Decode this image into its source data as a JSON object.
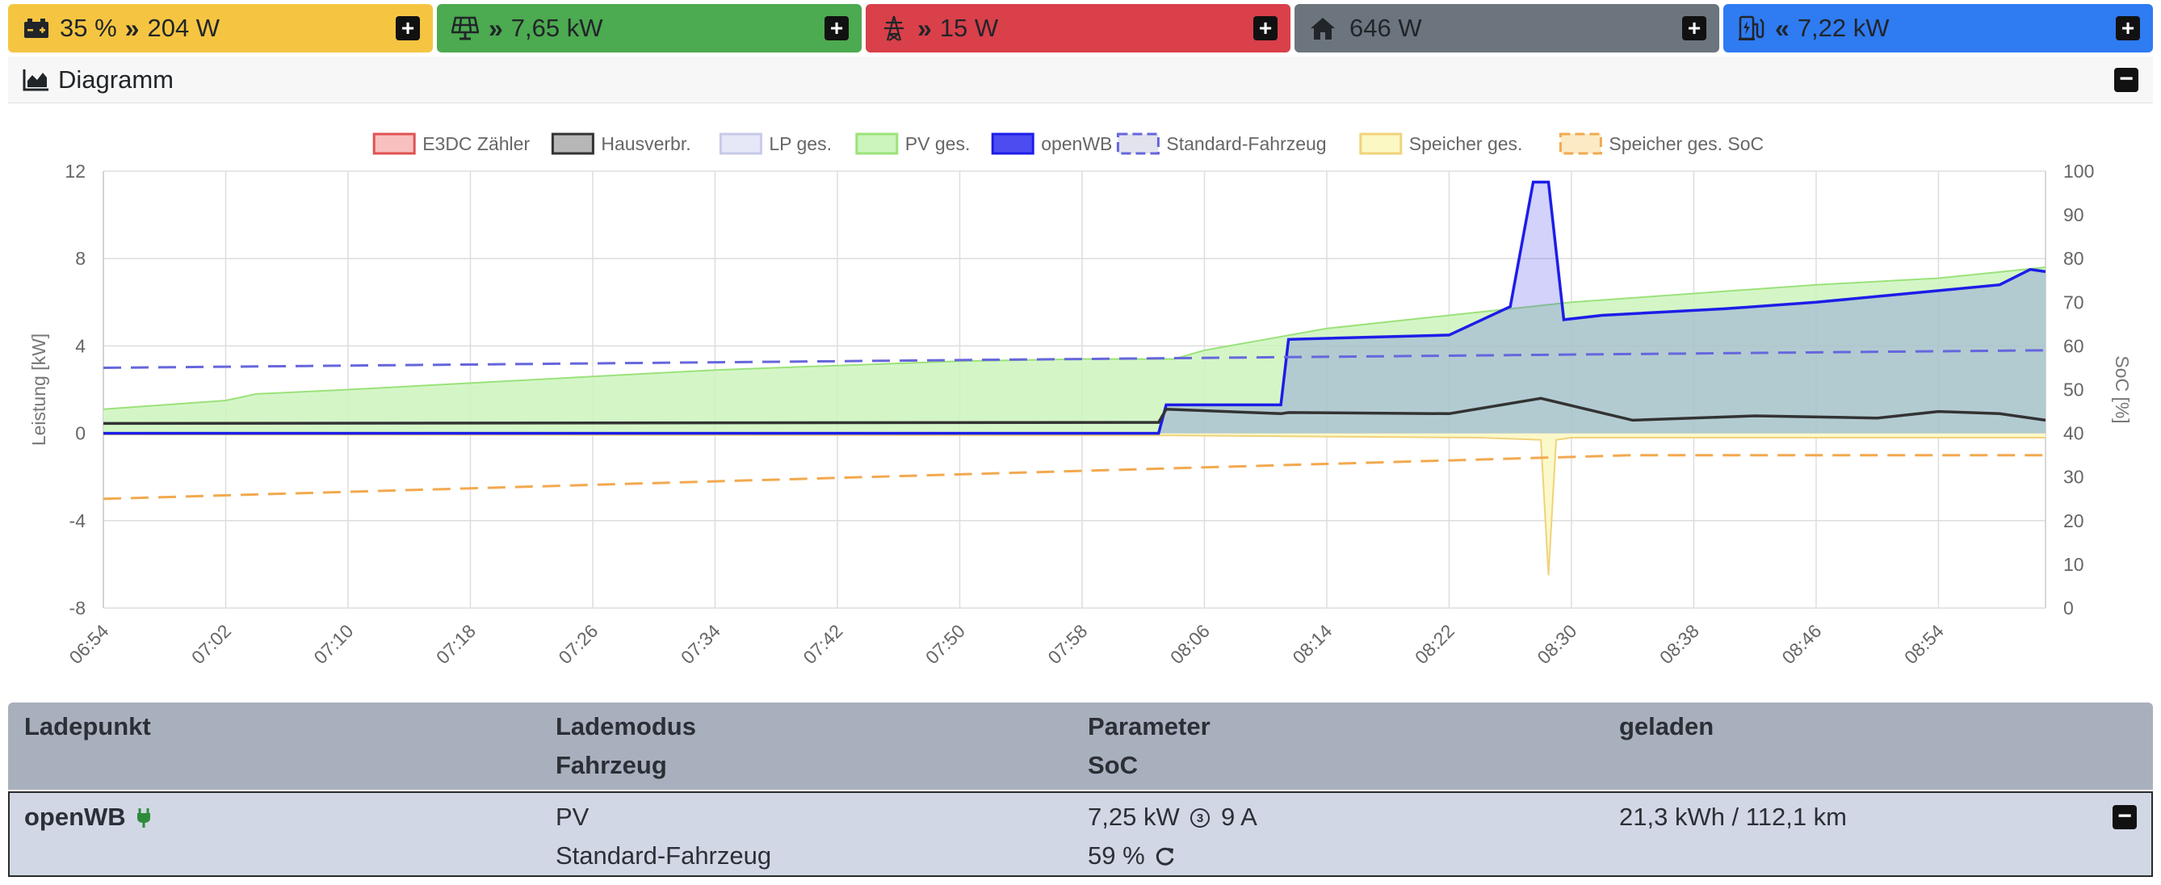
{
  "tiles": {
    "battery": {
      "soc": "35 %",
      "arrow": "»",
      "power": "204 W",
      "color": "#f5c542",
      "icon": "battery-icon"
    },
    "pv": {
      "arrow": "»",
      "power": "7,65 kW",
      "color": "#4caa50",
      "icon": "solar-panel-icon"
    },
    "grid": {
      "arrow": "»",
      "power": "15 W",
      "color": "#d9404a",
      "icon": "power-tower-icon"
    },
    "house": {
      "power": "646 W",
      "color": "#6c757d",
      "icon": "home-icon"
    },
    "charge": {
      "arrow": "«",
      "power": "7,22 kW",
      "color": "#2f7bf2",
      "icon": "charging-station-icon"
    }
  },
  "diagram": {
    "title": "Diagramm"
  },
  "chart_data": {
    "type": "line",
    "legend_position": "top",
    "legend": [
      {
        "name": "E3DC Zähler",
        "stroke": "#e05252",
        "fill": "#f9c0c0",
        "dashed": false
      },
      {
        "name": "Hausverbr.",
        "stroke": "#333333",
        "fill": "#b7b7b7",
        "dashed": false
      },
      {
        "name": "LP ges.",
        "stroke": "#c7cbe8",
        "fill": "#e6e7f7",
        "dashed": false
      },
      {
        "name": "PV ges.",
        "stroke": "#9be27a",
        "fill": "#ccf5bd",
        "dashed": false
      },
      {
        "name": "openWB",
        "stroke": "#1d1de8",
        "fill": "#4c4cf0",
        "dashed": false
      },
      {
        "name": "Standard-Fahrzeug",
        "stroke": "#6666dd",
        "fill": "#e3e3ee",
        "dashed": true
      },
      {
        "name": "Speicher ges.",
        "stroke": "#f0d27a",
        "fill": "#fbf8c4",
        "dashed": false
      },
      {
        "name": "Speicher ges. SoC",
        "stroke": "#f2a94e",
        "fill": "#fbeac4",
        "dashed": true
      }
    ],
    "ylabel": "Leistung [kW]",
    "y2label": "SoC [%]",
    "ylim": [
      -8,
      12
    ],
    "y2lim": [
      0,
      100
    ],
    "yticks": [
      "12",
      "8",
      "4",
      "0",
      "-4",
      "-8"
    ],
    "y2ticks": [
      "100",
      "90",
      "80",
      "70",
      "60",
      "50",
      "40",
      "30",
      "20",
      "10",
      "0"
    ],
    "xticks": [
      "06:54",
      "07:02",
      "07:10",
      "07:18",
      "07:26",
      "07:34",
      "07:42",
      "07:50",
      "07:58",
      "08:06",
      "08:14",
      "08:22",
      "08:30",
      "08:38",
      "08:46",
      "08:54"
    ],
    "xlim_minutes": [
      0,
      127
    ],
    "grid": true,
    "series": [
      {
        "name": "PV ges.",
        "x": [
          0,
          8,
          10,
          16,
          24,
          32,
          40,
          48,
          56,
          64,
          70,
          72,
          76,
          80,
          88,
          96,
          104,
          112,
          120,
          127
        ],
        "y": [
          1.1,
          1.5,
          1.8,
          2.0,
          2.3,
          2.6,
          2.9,
          3.1,
          3.3,
          3.4,
          3.4,
          3.8,
          4.3,
          4.8,
          5.4,
          6.0,
          6.4,
          6.8,
          7.1,
          7.6
        ]
      },
      {
        "name": "Hausverbr.",
        "x": [
          0,
          69,
          69.5,
          77,
          77.5,
          88,
          94,
          100,
          108,
          116,
          120,
          124,
          127
        ],
        "y": [
          0.45,
          0.5,
          1.1,
          0.9,
          0.95,
          0.9,
          1.6,
          0.6,
          0.8,
          0.7,
          1.0,
          0.9,
          0.6
        ]
      },
      {
        "name": "openWB",
        "x": [
          0,
          69,
          69.5,
          77,
          77.5,
          88,
          92,
          93.5,
          94.5,
          95.5,
          98,
          106,
          112,
          118,
          124,
          126,
          127
        ],
        "y": [
          0,
          0,
          1.3,
          1.3,
          4.3,
          4.5,
          5.8,
          11.5,
          11.5,
          5.2,
          5.4,
          5.7,
          6.0,
          6.4,
          6.8,
          7.5,
          7.4
        ]
      },
      {
        "name": "Speicher ges.",
        "x": [
          0,
          70,
          90,
          94,
          94.5,
          95,
          96,
          106,
          127
        ],
        "y": [
          -0.05,
          -0.1,
          -0.2,
          -0.3,
          -6.5,
          -0.3,
          -0.2,
          -0.2,
          -0.2
        ]
      },
      {
        "name": "Standard-Fahrzeug",
        "x": [
          0,
          127
        ],
        "y": [
          55,
          59
        ]
      },
      {
        "name": "Speicher ges. SoC",
        "x": [
          0,
          20,
          40,
          60,
          80,
          100,
          127
        ],
        "y": [
          25,
          27,
          29,
          31,
          33,
          35,
          35
        ]
      }
    ]
  },
  "table": {
    "headers": {
      "ladepunkt": "Ladepunkt",
      "lademodus": "Lademodus",
      "fahrzeug": "Fahrzeug",
      "parameter": "Parameter",
      "soc": "SoC",
      "geladen": "geladen"
    },
    "rows": [
      {
        "name": "openWB",
        "mode": "PV",
        "vehicle": "Standard-Fahrzeug",
        "param_power": "7,25 kW",
        "phases": "3",
        "current": "9 A",
        "soc": "59 %",
        "charged": "21,3 kWh / 112,1 km",
        "plug_icon": "plug-icon",
        "refresh_icon": "refresh-icon"
      }
    ]
  }
}
